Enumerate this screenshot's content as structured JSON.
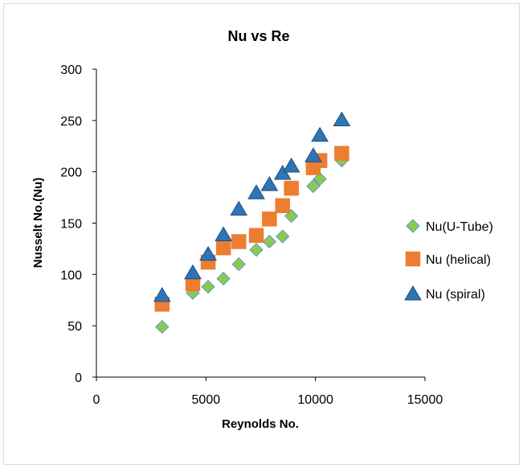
{
  "chart_data": {
    "type": "scatter",
    "title": "Nu vs Re",
    "xlabel": "Reynolds No.",
    "ylabel": "Nusselt No.(Nu)",
    "xlim": [
      0,
      15000
    ],
    "ylim": [
      0,
      300
    ],
    "xticks": [
      0,
      5000,
      10000,
      15000
    ],
    "yticks": [
      0,
      50,
      100,
      150,
      200,
      250,
      300
    ],
    "grid": false,
    "legend_position": "right",
    "series": [
      {
        "name": "Nu(U-Tube)",
        "marker": "diamond",
        "color": "#8dc94e",
        "stroke": "#5b9bd5",
        "points": [
          [
            3000,
            49
          ],
          [
            4400,
            82
          ],
          [
            5100,
            88
          ],
          [
            5800,
            96
          ],
          [
            6500,
            110
          ],
          [
            7300,
            124
          ],
          [
            7900,
            132
          ],
          [
            8500,
            137
          ],
          [
            8900,
            157
          ],
          [
            9900,
            186
          ],
          [
            10200,
            193
          ],
          [
            11200,
            211
          ]
        ]
      },
      {
        "name": "Nu (helical)",
        "marker": "square",
        "color": "#ed7d31",
        "stroke": "#ed7d31",
        "points": [
          [
            3000,
            71
          ],
          [
            4400,
            91
          ],
          [
            5100,
            112
          ],
          [
            5800,
            126
          ],
          [
            6500,
            132
          ],
          [
            7300,
            138
          ],
          [
            7900,
            154
          ],
          [
            8500,
            167
          ],
          [
            8900,
            184
          ],
          [
            9900,
            204
          ],
          [
            10200,
            211
          ],
          [
            11200,
            218
          ]
        ]
      },
      {
        "name": "Nu (spiral)",
        "marker": "triangle",
        "color": "#2e75b6",
        "stroke": "#1f4e79",
        "points": [
          [
            3000,
            80
          ],
          [
            4400,
            102
          ],
          [
            5100,
            120
          ],
          [
            5800,
            139
          ],
          [
            6500,
            164
          ],
          [
            7300,
            180
          ],
          [
            7900,
            188
          ],
          [
            8500,
            199
          ],
          [
            8900,
            206
          ],
          [
            9900,
            216
          ],
          [
            10200,
            236
          ],
          [
            11200,
            251
          ]
        ]
      }
    ]
  }
}
